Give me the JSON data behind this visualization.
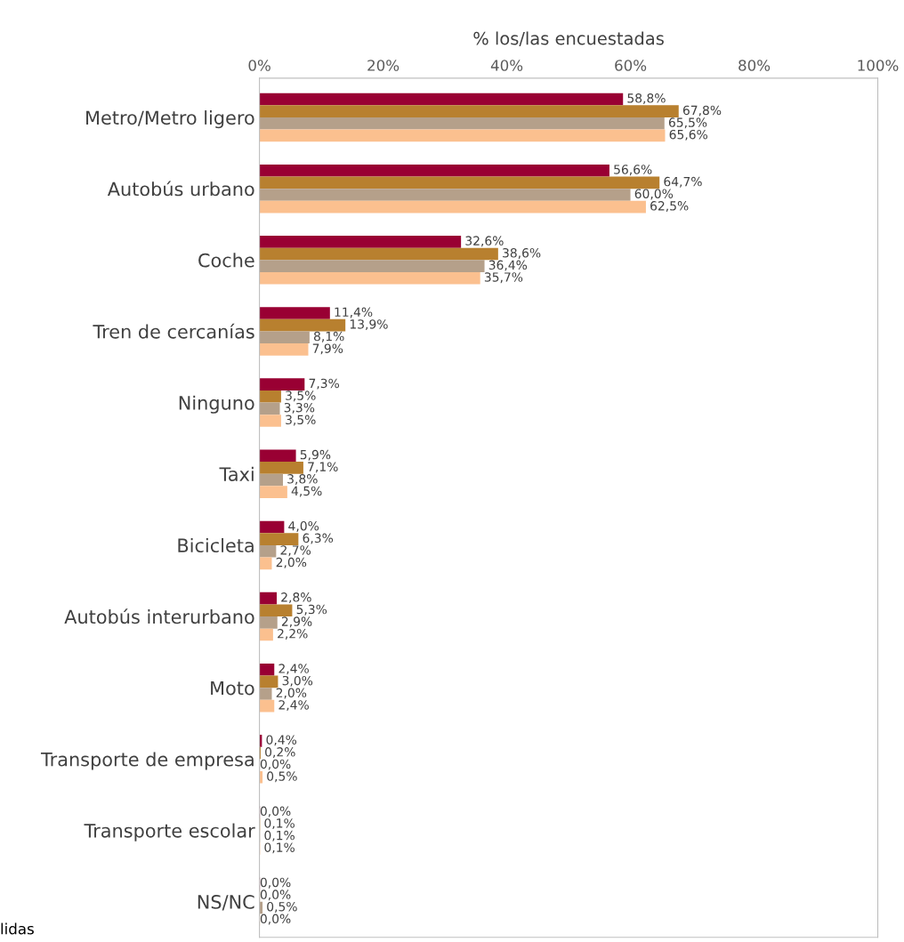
{
  "chart_data": {
    "type": "bar",
    "orientation": "horizontal",
    "xlabel": "% los/las encuestadas",
    "categories": [
      "Metro/Metro ligero",
      "Autobús urbano",
      "Coche",
      "Tren de cercanías",
      "Ninguno",
      "Taxi",
      "Bicicleta",
      "Autobús interurbano",
      "Moto",
      "Transporte de empresa",
      "Transporte escolar",
      "NS/NC"
    ],
    "series": [
      {
        "color": "#990033",
        "values": [
          58.8,
          56.6,
          32.6,
          11.4,
          7.3,
          5.9,
          4.0,
          2.8,
          2.4,
          0.4,
          0.0,
          0.0
        ],
        "value_labels": [
          "58,8%",
          "56,6%",
          "32,6%",
          "11,4%",
          "7,3%",
          "5,9%",
          "4,0%",
          "2,8%",
          "2,4%",
          "0,4%",
          "0,0%",
          "0,0%"
        ]
      },
      {
        "color": "#b8802f",
        "values": [
          67.8,
          64.7,
          38.6,
          13.9,
          3.5,
          7.1,
          6.3,
          5.3,
          3.0,
          0.2,
          0.1,
          0.0
        ],
        "value_labels": [
          "67,8%",
          "64,7%",
          "38,6%",
          "13,9%",
          "3,5%",
          "7,1%",
          "6,3%",
          "5,3%",
          "3,0%",
          "0,2%",
          "0,1%",
          "0,0%"
        ]
      },
      {
        "color": "#b5a08a",
        "values": [
          65.5,
          60.0,
          36.4,
          8.1,
          3.3,
          3.8,
          2.7,
          2.9,
          2.0,
          0.0,
          0.1,
          0.5
        ],
        "value_labels": [
          "65,5%",
          "60,0%",
          "36,4%",
          "8,1%",
          "3,3%",
          "3,8%",
          "2,7%",
          "2,9%",
          "2,0%",
          "0,0%",
          "0,1%",
          "0,5%"
        ]
      },
      {
        "color": "#fbc08f",
        "values": [
          65.6,
          62.5,
          35.7,
          7.9,
          3.5,
          4.5,
          2.0,
          2.2,
          2.4,
          0.5,
          0.1,
          0.0
        ],
        "value_labels": [
          "65,6%",
          "62,5%",
          "35,7%",
          "7,9%",
          "3,5%",
          "4,5%",
          "2,0%",
          "2,2%",
          "2,4%",
          "0,5%",
          "0,1%",
          "0,0%"
        ]
      }
    ],
    "xlim": [
      0,
      100
    ],
    "xticks": [
      {
        "value": 0,
        "label": "0%"
      },
      {
        "value": 20,
        "label": "20%"
      },
      {
        "value": 40,
        "label": "40%"
      },
      {
        "value": 60,
        "label": "60%"
      },
      {
        "value": 80,
        "label": "80%"
      },
      {
        "value": 100,
        "label": "100%"
      }
    ],
    "grid": false,
    "annotations": [
      "lidas"
    ]
  }
}
